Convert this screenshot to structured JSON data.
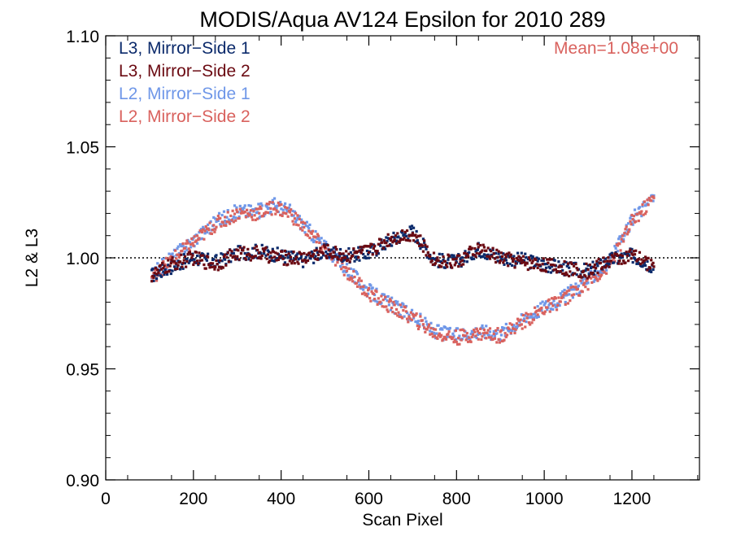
{
  "colors": {
    "l3_ms1": "#0b2a6b",
    "l3_ms2": "#6b0a12",
    "l2_ms1": "#6f97e8",
    "l2_ms2": "#d9625e",
    "axis": "#000000"
  },
  "chart_data": {
    "type": "scatter",
    "title": "MODIS/Aqua AV124 Epsilon for 2010 289",
    "xlabel": "Scan Pixel",
    "ylabel": "L2 & L3",
    "xlim": [
      0,
      1354
    ],
    "ylim": [
      0.9,
      1.1
    ],
    "x_ticks": [
      0,
      200,
      400,
      600,
      800,
      1000,
      1200
    ],
    "x_tick_labels": [
      "0",
      "200",
      "400",
      "600",
      "800",
      "1000",
      "1200"
    ],
    "y_ticks": [
      0.9,
      0.95,
      1.0,
      1.05,
      1.1
    ],
    "y_tick_labels": [
      "0.90",
      "0.95",
      "1.00",
      "1.05",
      "1.10"
    ],
    "reference_line": {
      "y": 1.0,
      "style": "dotted"
    },
    "annotation": "Mean=1.08e+00",
    "legend_position": "top-left",
    "x_range": [
      105,
      1250
    ],
    "series": [
      {
        "name": "L3, Mirror−Side 1",
        "color_key": "l3_ms1",
        "x": [
          105,
          150,
          200,
          250,
          300,
          350,
          400,
          450,
          500,
          550,
          600,
          650,
          700,
          750,
          800,
          850,
          900,
          950,
          1000,
          1050,
          1100,
          1150,
          1200,
          1250
        ],
        "y": [
          0.992,
          0.996,
          1.0,
          0.998,
          1.002,
          1.003,
          1.001,
          0.999,
          1.003,
          1.001,
          1.002,
          1.008,
          1.012,
          0.999,
          0.998,
          1.004,
          1.0,
          0.999,
          0.997,
          0.995,
          0.994,
          0.999,
          1.001,
          0.996
        ]
      },
      {
        "name": "L3, Mirror−Side 2",
        "color_key": "l3_ms2",
        "x": [
          105,
          150,
          200,
          250,
          300,
          350,
          400,
          450,
          500,
          550,
          600,
          650,
          700,
          750,
          800,
          850,
          900,
          950,
          1000,
          1050,
          1100,
          1150,
          1200,
          1250
        ],
        "y": [
          0.992,
          0.997,
          1.0,
          0.997,
          1.002,
          1.002,
          1.0,
          1.0,
          1.003,
          1.001,
          1.003,
          1.009,
          1.011,
          0.999,
          0.998,
          1.004,
          1.0,
          0.998,
          0.997,
          0.995,
          0.994,
          0.999,
          1.001,
          0.996
        ]
      },
      {
        "name": "L2, Mirror−Side 1",
        "color_key": "l2_ms1",
        "x": [
          105,
          150,
          200,
          250,
          300,
          350,
          385,
          420,
          450,
          500,
          550,
          600,
          650,
          700,
          750,
          800,
          850,
          900,
          950,
          1000,
          1050,
          1100,
          1150,
          1200,
          1250
        ],
        "y": [
          0.992,
          1.0,
          1.008,
          1.016,
          1.021,
          1.021,
          1.024,
          1.021,
          1.015,
          1.005,
          0.995,
          0.985,
          0.979,
          0.974,
          0.967,
          0.965,
          0.967,
          0.966,
          0.972,
          0.978,
          0.983,
          0.99,
          0.998,
          1.017,
          1.028
        ]
      },
      {
        "name": "L2, Mirror−Side 2",
        "color_key": "l2_ms2",
        "x": [
          105,
          150,
          200,
          250,
          300,
          350,
          385,
          420,
          450,
          500,
          550,
          600,
          650,
          700,
          750,
          800,
          850,
          900,
          950,
          1000,
          1050,
          1100,
          1150,
          1200,
          1250
        ],
        "y": [
          0.991,
          0.999,
          1.007,
          1.015,
          1.02,
          1.02,
          1.023,
          1.02,
          1.014,
          1.004,
          0.994,
          0.984,
          0.978,
          0.973,
          0.966,
          0.964,
          0.966,
          0.965,
          0.971,
          0.977,
          0.982,
          0.989,
          0.997,
          1.016,
          1.027
        ]
      }
    ]
  }
}
